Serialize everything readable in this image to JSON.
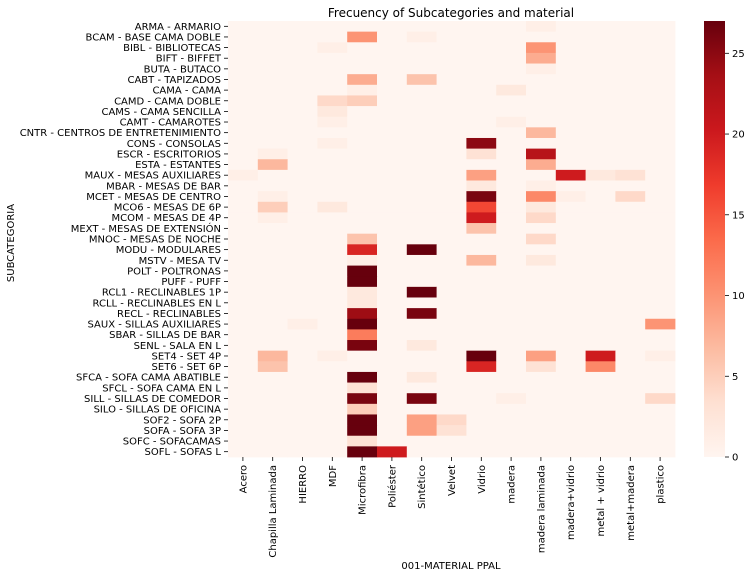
{
  "chart_data": {
    "type": "heatmap",
    "title": "Frecuency of Subcategories and material",
    "xlabel": "001-MATERIAL PPAL",
    "ylabel": "SUBCATEGORIA",
    "colormap": "Reds",
    "color_low": "#fff5f0",
    "color_high": "#67000d",
    "vmin": 0,
    "vmax": 27,
    "colorbar_ticks": [
      0,
      5,
      10,
      15,
      20,
      25
    ],
    "columns": [
      "Acero",
      "Chapilla Laminada",
      "HIERRO",
      "MDF",
      "Microfibra",
      "Poliéster",
      "Sintético",
      "Velvet",
      "Vidrio",
      "madera",
      "madera laminada",
      "madera+vidrio",
      "metal + vidrio",
      "metal+madera",
      "plastico"
    ],
    "rows": [
      {
        "label": "ARMA - ARMARIO",
        "values": [
          0,
          0,
          0,
          0,
          0,
          0,
          0,
          0,
          0,
          0,
          1,
          0,
          0,
          0,
          0
        ]
      },
      {
        "label": "BCAM - BASE CAMA DOBLE",
        "values": [
          0,
          0,
          0,
          0,
          10,
          0,
          1,
          0,
          0,
          0,
          0,
          0,
          0,
          0,
          0
        ]
      },
      {
        "label": "BIBL - BIBLIOTECAS",
        "values": [
          0,
          0,
          0,
          1,
          0,
          0,
          0,
          0,
          0,
          0,
          10,
          0,
          0,
          0,
          0
        ]
      },
      {
        "label": "BIFT - BIFFET",
        "values": [
          0,
          0,
          0,
          0,
          0,
          0,
          0,
          0,
          0,
          0,
          8,
          0,
          0,
          0,
          0
        ]
      },
      {
        "label": "BUTA - BUTACO",
        "values": [
          0,
          0,
          0,
          0,
          0,
          0,
          0,
          0,
          0,
          0,
          1,
          0,
          0,
          0,
          0
        ]
      },
      {
        "label": "CABT - TAPIZADOS",
        "values": [
          0,
          0,
          0,
          0,
          8,
          0,
          6,
          0,
          0,
          0,
          0,
          0,
          0,
          0,
          0
        ]
      },
      {
        "label": "CAMA - CAMA",
        "values": [
          0,
          0,
          0,
          0,
          1,
          0,
          0,
          0,
          0,
          2,
          0,
          0,
          0,
          0,
          0
        ]
      },
      {
        "label": "CAMD - CAMA DOBLE",
        "values": [
          0,
          0,
          0,
          4,
          5,
          0,
          0,
          0,
          0,
          0,
          0,
          0,
          0,
          0,
          0
        ]
      },
      {
        "label": "CAMS - CAMA SENCILLA",
        "values": [
          0,
          0,
          0,
          2,
          0,
          0,
          0,
          0,
          0,
          0,
          0,
          0,
          0,
          0,
          0
        ]
      },
      {
        "label": "CAMT - CAMAROTES",
        "values": [
          0,
          0,
          0,
          1,
          0,
          0,
          0,
          0,
          0,
          1,
          0,
          0,
          0,
          0,
          0
        ]
      },
      {
        "label": "CNTR - CENTROS DE ENTRETENIMIENTO",
        "values": [
          0,
          0,
          0,
          0,
          0,
          0,
          0,
          0,
          0,
          0,
          7,
          0,
          0,
          0,
          0
        ]
      },
      {
        "label": "CONS - CONSOLAS",
        "values": [
          0,
          0,
          0,
          1,
          0,
          0,
          0,
          0,
          25,
          0,
          0,
          0,
          0,
          0,
          0
        ]
      },
      {
        "label": "ESCR - ESCRITORIOS",
        "values": [
          0,
          1,
          0,
          0,
          0,
          0,
          0,
          0,
          3,
          0,
          22,
          0,
          0,
          0,
          0
        ]
      },
      {
        "label": "ESTA - ESTANTES",
        "values": [
          0,
          7,
          0,
          0,
          0,
          0,
          0,
          0,
          0,
          0,
          8,
          0,
          0,
          0,
          0
        ]
      },
      {
        "label": "MAUX - MESAS AUXILIARES",
        "values": [
          1,
          0,
          0,
          0,
          0,
          0,
          0,
          0,
          9,
          0,
          0,
          20,
          2,
          3,
          0
        ]
      },
      {
        "label": "MBAR - MESAS DE BAR",
        "values": [
          0,
          0,
          0,
          0,
          0,
          0,
          0,
          0,
          2,
          0,
          1,
          0,
          0,
          0,
          0
        ]
      },
      {
        "label": "MCET - MESAS DE CENTRO",
        "values": [
          0,
          1,
          0,
          0,
          0,
          0,
          0,
          0,
          26,
          0,
          11,
          1,
          0,
          4,
          0
        ]
      },
      {
        "label": "MCO6 - MESAS DE 6P",
        "values": [
          0,
          5,
          0,
          2,
          0,
          0,
          0,
          0,
          16,
          0,
          2,
          0,
          0,
          0,
          0
        ]
      },
      {
        "label": "MCOM - MESAS DE 4P",
        "values": [
          0,
          1,
          0,
          0,
          0,
          0,
          0,
          0,
          20,
          0,
          4,
          0,
          0,
          0,
          0
        ]
      },
      {
        "label": "MEXT - MESAS DE EXTENSIÓN",
        "values": [
          0,
          0,
          0,
          0,
          0,
          0,
          0,
          0,
          6,
          0,
          0,
          0,
          0,
          0,
          0
        ]
      },
      {
        "label": "MNOC - MESAS DE NOCHE",
        "values": [
          0,
          0,
          0,
          0,
          6,
          0,
          0,
          0,
          0,
          0,
          4,
          0,
          0,
          0,
          0
        ]
      },
      {
        "label": "MODU - MODULARES",
        "values": [
          0,
          0,
          0,
          0,
          19,
          0,
          27,
          0,
          0,
          0,
          0,
          0,
          0,
          0,
          0
        ]
      },
      {
        "label": "MSTV - MESA TV",
        "values": [
          0,
          0,
          0,
          0,
          1,
          0,
          0,
          0,
          7,
          0,
          2,
          0,
          0,
          0,
          0
        ]
      },
      {
        "label": "POLT - POLTRONAS",
        "values": [
          0,
          0,
          0,
          0,
          27,
          0,
          0,
          0,
          0,
          0,
          0,
          0,
          0,
          0,
          0
        ]
      },
      {
        "label": "PUFF - PUFF",
        "values": [
          0,
          0,
          0,
          0,
          27,
          0,
          0,
          0,
          0,
          0,
          0,
          0,
          0,
          0,
          0
        ]
      },
      {
        "label": "RCL1 - RECLINABLES 1P",
        "values": [
          0,
          0,
          0,
          0,
          2,
          0,
          27,
          0,
          0,
          0,
          0,
          0,
          0,
          0,
          0
        ]
      },
      {
        "label": "RCLL - RECLINABLES EN L",
        "values": [
          0,
          0,
          0,
          0,
          2,
          0,
          0,
          0,
          0,
          0,
          0,
          0,
          0,
          0,
          0
        ]
      },
      {
        "label": "RECL - RECLINABLES",
        "values": [
          0,
          0,
          0,
          0,
          24,
          0,
          26,
          0,
          0,
          0,
          0,
          0,
          0,
          0,
          0
        ]
      },
      {
        "label": "SAUX - SILLAS AUXILIARES",
        "values": [
          0,
          0,
          1,
          0,
          27,
          0,
          0,
          0,
          0,
          0,
          0,
          0,
          0,
          0,
          10
        ]
      },
      {
        "label": "SBAR - SILLAS DE BAR",
        "values": [
          0,
          0,
          0,
          0,
          12,
          0,
          0,
          0,
          0,
          0,
          0,
          0,
          0,
          0,
          0
        ]
      },
      {
        "label": "SENL - SALA EN L",
        "values": [
          0,
          0,
          0,
          0,
          26,
          0,
          2,
          0,
          0,
          0,
          0,
          0,
          0,
          0,
          0
        ]
      },
      {
        "label": "SET4 - SET 4P",
        "values": [
          0,
          7,
          0,
          1,
          0,
          0,
          0,
          0,
          27,
          0,
          9,
          0,
          20,
          0,
          1
        ]
      },
      {
        "label": "SET6 - SET 6P",
        "values": [
          0,
          6,
          0,
          0,
          0,
          0,
          0,
          0,
          19,
          0,
          3,
          0,
          11,
          0,
          0
        ]
      },
      {
        "label": "SFCA - SOFA CAMA ABATIBLE",
        "values": [
          0,
          0,
          0,
          0,
          27,
          0,
          2,
          0,
          0,
          0,
          0,
          0,
          0,
          0,
          0
        ]
      },
      {
        "label": "SFCL - SOFA CAMA EN L",
        "values": [
          0,
          0,
          0,
          0,
          3,
          0,
          0,
          0,
          0,
          0,
          0,
          0,
          0,
          0,
          0
        ]
      },
      {
        "label": "SILL - SILLAS DE COMEDOR",
        "values": [
          0,
          0,
          0,
          0,
          26,
          0,
          26,
          0,
          0,
          1,
          0,
          0,
          0,
          0,
          4
        ]
      },
      {
        "label": "SILO - SILLAS DE OFICINA",
        "values": [
          0,
          0,
          0,
          0,
          5,
          0,
          0,
          0,
          0,
          0,
          0,
          0,
          0,
          0,
          0
        ]
      },
      {
        "label": "SOF2 - SOFA 2P",
        "values": [
          0,
          0,
          0,
          0,
          27,
          0,
          9,
          4,
          0,
          0,
          0,
          0,
          0,
          0,
          0
        ]
      },
      {
        "label": "SOFA - SOFA 3P",
        "values": [
          0,
          0,
          0,
          0,
          27,
          0,
          9,
          3,
          0,
          0,
          0,
          0,
          0,
          0,
          0
        ]
      },
      {
        "label": "SOFC - SOFACAMAS",
        "values": [
          0,
          0,
          0,
          0,
          3,
          0,
          0,
          0,
          0,
          0,
          0,
          0,
          0,
          0,
          0
        ]
      },
      {
        "label": "SOFL - SOFAS L",
        "values": [
          0,
          0,
          0,
          0,
          27,
          20,
          0,
          0,
          0,
          0,
          0,
          0,
          0,
          0,
          0
        ]
      }
    ]
  }
}
